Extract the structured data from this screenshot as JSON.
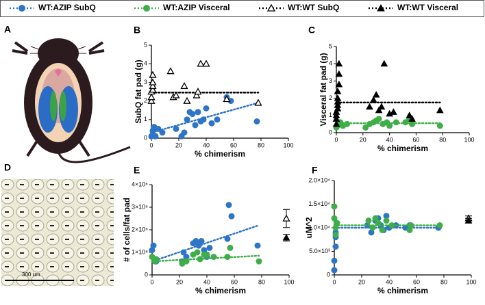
{
  "figure": {
    "panel_a": "A",
    "panel_d": "D",
    "scale_bar": "300 um"
  },
  "chart_data": [
    {
      "type": "scatter",
      "panel": "B",
      "xlabel": "% chimerism",
      "ylabel": "SubQ fat pad (g)",
      "xlim": [
        0,
        100
      ],
      "ylim": [
        0,
        5
      ],
      "xticks": [
        0,
        20,
        40,
        60,
        80,
        100
      ],
      "yticks": [
        0,
        1,
        2,
        3,
        4,
        5
      ],
      "series": [
        {
          "name": "WT:AZIP SubQ",
          "color": "#2e75c7",
          "marker": "circle",
          "x": [
            0,
            1,
            1,
            2,
            3,
            5,
            8,
            18,
            22,
            24,
            26,
            28,
            30,
            32,
            34,
            36,
            38,
            40,
            44,
            48,
            55,
            58,
            77
          ],
          "values": [
            0.1,
            0.2,
            0.4,
            0.6,
            0.1,
            0.5,
            0.3,
            0.5,
            0.1,
            0.3,
            1.0,
            1.4,
            1.3,
            0.7,
            1.4,
            0.9,
            1.0,
            1.6,
            0.8,
            1.0,
            2.2,
            2.0,
            0.9
          ],
          "fit": {
            "x": [
              0,
              78
            ],
            "y": [
              0.3,
              1.9
            ]
          }
        },
        {
          "name": "WT:WT SubQ",
          "color": "#000000",
          "marker": "triangle-open",
          "x": [
            0,
            0,
            0,
            1,
            1,
            1,
            1,
            14,
            16,
            18,
            24,
            26,
            33,
            34,
            36,
            40,
            55,
            78
          ],
          "values": [
            2.0,
            2.2,
            2.5,
            2.6,
            2.8,
            3.0,
            3.4,
            3.6,
            2.2,
            2.3,
            2.8,
            2.0,
            2.3,
            2.5,
            4.0,
            4.0,
            2.1,
            1.9
          ],
          "fit": {
            "x": [
              0,
              78
            ],
            "y": [
              2.45,
              2.45
            ]
          }
        }
      ]
    },
    {
      "type": "scatter",
      "panel": "C",
      "xlabel": "% chimerism",
      "ylabel": "Visceral fat pad (g)",
      "xlim": [
        0,
        100
      ],
      "ylim": [
        0,
        5
      ],
      "xticks": [
        0,
        20,
        40,
        60,
        80,
        100
      ],
      "yticks": [
        0,
        1,
        2,
        3,
        4,
        5
      ],
      "series": [
        {
          "name": "WT:AZIP Visceral",
          "color": "#3fae49",
          "marker": "circle",
          "x": [
            0,
            1,
            2,
            3,
            5,
            8,
            22,
            25,
            28,
            30,
            32,
            35,
            38,
            40,
            45,
            52,
            55,
            57,
            78
          ],
          "values": [
            0.3,
            0.4,
            0.5,
            0.6,
            0.4,
            0.5,
            0.3,
            0.5,
            0.6,
            0.7,
            0.8,
            0.5,
            0.6,
            0.4,
            0.6,
            0.6,
            0.8,
            0.5,
            0.4
          ],
          "fit": {
            "x": [
              0,
              78
            ],
            "y": [
              0.55,
              0.55
            ]
          }
        },
        {
          "name": "WT:WT Visceral",
          "color": "#000000",
          "marker": "triangle",
          "x": [
            0,
            0,
            0,
            0,
            1,
            1,
            1,
            1,
            1,
            2,
            2,
            2,
            25,
            28,
            30,
            32,
            34,
            36,
            40,
            43,
            55,
            57,
            78
          ],
          "values": [
            0.5,
            0.8,
            1.0,
            1.2,
            1.4,
            1.6,
            1.8,
            2.0,
            2.4,
            2.8,
            3.4,
            4.0,
            1.5,
            1.9,
            2.2,
            1.3,
            1.5,
            4.0,
            1.1,
            1.2,
            1.0,
            0.8,
            1.3
          ],
          "fit": {
            "x": [
              0,
              78
            ],
            "y": [
              1.75,
              1.75
            ]
          }
        }
      ]
    },
    {
      "type": "scatter",
      "panel": "E",
      "xlabel": "% chimerism",
      "ylabel": "# of cells/fat pad",
      "xlim": [
        0,
        100
      ],
      "ylim": [
        0,
        4000000
      ],
      "xticks": [
        0,
        20,
        40,
        60,
        80,
        100
      ],
      "yticks": [
        0,
        {
          "value": 1000000,
          "label": "1×10⁶"
        },
        {
          "value": 2000000,
          "label": "2×10⁶"
        },
        {
          "value": 3000000,
          "label": "3×10⁶"
        },
        {
          "value": 4000000,
          "label": "4×10⁶"
        }
      ],
      "series": [
        {
          "color": "#2e75c7",
          "marker": "circle",
          "x": [
            0,
            1,
            3,
            22,
            23,
            25,
            30,
            32,
            34,
            36,
            38,
            40,
            42,
            55,
            56,
            58,
            77
          ],
          "values": [
            1100000,
            1300000,
            600000,
            600000,
            1000000,
            800000,
            1400000,
            1500000,
            1300000,
            1500000,
            1100000,
            800000,
            1200000,
            1600000,
            3100000,
            2600000,
            1300000
          ],
          "fit": {
            "x": [
              0,
              78
            ],
            "y": [
              600000,
              2200000
            ]
          }
        },
        {
          "color": "#3fae49",
          "marker": "circle",
          "x": [
            0,
            2,
            3,
            22,
            25,
            30,
            33,
            35,
            38,
            40,
            45,
            55,
            57,
            78
          ],
          "values": [
            800000,
            600000,
            700000,
            500000,
            600000,
            900000,
            1000000,
            700000,
            900000,
            900000,
            800000,
            800000,
            1200000,
            600000
          ],
          "fit": {
            "x": [
              0,
              78
            ],
            "y": [
              600000,
              850000
            ]
          }
        },
        {
          "color": "#000000",
          "marker": "triangle-open",
          "x": [
            98
          ],
          "values": [
            2500000
          ],
          "errors": [
            400000
          ]
        },
        {
          "color": "#000000",
          "marker": "triangle",
          "x": [
            98
          ],
          "values": [
            1650000
          ],
          "errors": [
            150000
          ]
        }
      ]
    },
    {
      "type": "scatter",
      "panel": "F",
      "xlabel": "% chimerism",
      "ylabel": "uM^2",
      "xlim": [
        0,
        100
      ],
      "ylim": [
        0,
        20000
      ],
      "xticks": [
        0,
        20,
        40,
        60,
        80,
        100
      ],
      "yticks": [
        0,
        {
          "value": 5000,
          "label": "5.0×10³"
        },
        {
          "value": 10000,
          "label": "1.0×10⁴"
        },
        {
          "value": 15000,
          "label": "1.5×10⁴"
        },
        {
          "value": 20000,
          "label": "2.0×10⁴"
        }
      ],
      "series": [
        {
          "color": "#2e75c7",
          "marker": "circle",
          "x": [
            0,
            0,
            1,
            1,
            1,
            24,
            27,
            30,
            32,
            34,
            36,
            38,
            40,
            45,
            52,
            55,
            76
          ],
          "values": [
            1000,
            3000,
            6000,
            8000,
            9000,
            10500,
            9000,
            11500,
            12000,
            10500,
            9500,
            12500,
            10000,
            10500,
            10000,
            10500,
            10000
          ],
          "fit": {
            "x": [
              0,
              78
            ],
            "y": [
              10000,
              10000
            ]
          }
        },
        {
          "color": "#3fae49",
          "marker": "circle",
          "x": [
            0,
            0,
            1,
            1,
            2,
            25,
            28,
            30,
            32,
            35,
            38,
            42,
            55,
            56,
            77
          ],
          "values": [
            14500,
            12000,
            10000,
            8500,
            11000,
            11500,
            10000,
            12000,
            11000,
            9500,
            11500,
            10500,
            9500,
            10500,
            10500
          ],
          "fit": {
            "x": [
              0,
              78
            ],
            "y": [
              10500,
              10500
            ]
          }
        },
        {
          "color": "#000000",
          "marker": "triangle-open",
          "x": [
            98
          ],
          "values": [
            12000
          ],
          "errors": [
            500
          ]
        },
        {
          "color": "#000000",
          "marker": "triangle",
          "x": [
            98
          ],
          "values": [
            11500
          ],
          "errors": [
            500
          ]
        }
      ]
    }
  ]
}
